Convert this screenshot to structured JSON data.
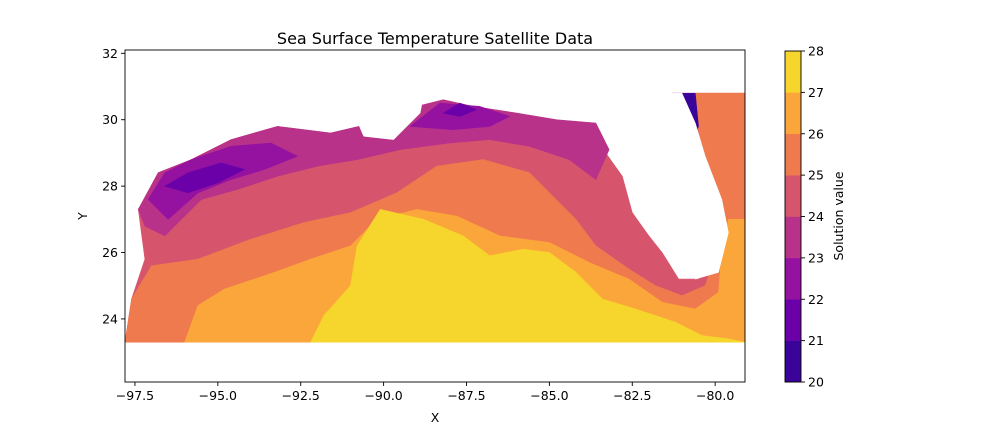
{
  "chart_data": {
    "type": "heatmap",
    "subtype": "filled-contour",
    "title": "Sea Surface Temperature Satellite Data",
    "xlabel": "X",
    "ylabel": "Y",
    "xlim": [
      -97.8,
      -79.1
    ],
    "ylim": [
      22.1,
      32.1
    ],
    "x_ticks": [
      -97.5,
      -95.0,
      -92.5,
      -90.0,
      -87.5,
      -85.0,
      -82.5,
      -80.0
    ],
    "x_tick_labels": [
      "−97.5",
      "−95.0",
      "−92.5",
      "−90.0",
      "−87.5",
      "−85.0",
      "−82.5",
      "−80.0"
    ],
    "y_ticks": [
      24,
      26,
      28,
      30,
      32
    ],
    "y_tick_labels": [
      "24",
      "26",
      "28",
      "30",
      "32"
    ],
    "colorbar": {
      "label": "Solution value",
      "levels": [
        20,
        21,
        22,
        23,
        24,
        25,
        26,
        27,
        28
      ],
      "tick_labels": [
        "20",
        "21",
        "22",
        "23",
        "24",
        "25",
        "26",
        "27",
        "28"
      ],
      "colormap": "plasma",
      "colors": [
        "#3a049a",
        "#6b00a8",
        "#9512a1",
        "#b83289",
        "#d6556d",
        "#ee7a4e",
        "#fba63a",
        "#f6d52c"
      ]
    },
    "regions_by_band": [
      {
        "band": [
          24,
          25
        ],
        "polygon": [
          [
            -97.8,
            23.3
          ],
          [
            -97.6,
            24.6
          ],
          [
            -97.2,
            25.8
          ],
          [
            -97.4,
            27.3
          ],
          [
            -96.8,
            28.4
          ],
          [
            -95.8,
            28.8
          ],
          [
            -94.6,
            29.4
          ],
          [
            -93.2,
            29.8
          ],
          [
            -91.6,
            29.6
          ],
          [
            -90.3,
            29.9
          ],
          [
            -89.4,
            30.3
          ],
          [
            -88.2,
            30.6
          ],
          [
            -87.3,
            30.4
          ],
          [
            -86.0,
            30.2
          ],
          [
            -84.8,
            30.0
          ],
          [
            -83.8,
            29.7
          ],
          [
            -83.3,
            29.0
          ],
          [
            -82.8,
            28.3
          ],
          [
            -82.5,
            27.2
          ],
          [
            -82.0,
            26.5
          ],
          [
            -81.6,
            26.0
          ],
          [
            -81.1,
            25.2
          ],
          [
            -80.5,
            25.2
          ],
          [
            -80.1,
            26.0
          ],
          [
            -79.9,
            27.4
          ],
          [
            -80.2,
            28.6
          ],
          [
            -80.5,
            29.6
          ],
          [
            -80.9,
            30.2
          ],
          [
            -81.3,
            30.8
          ],
          [
            -79.1,
            30.8
          ],
          [
            -79.1,
            23.3
          ]
        ]
      },
      {
        "band": [
          23,
          24
        ],
        "polygon": [
          [
            -97.4,
            27.3
          ],
          [
            -96.8,
            28.4
          ],
          [
            -95.8,
            28.8
          ],
          [
            -94.6,
            29.4
          ],
          [
            -93.2,
            29.8
          ],
          [
            -91.6,
            29.6
          ],
          [
            -90.3,
            29.9
          ],
          [
            -89.4,
            30.3
          ],
          [
            -88.2,
            30.6
          ],
          [
            -87.3,
            30.4
          ],
          [
            -86.0,
            30.2
          ],
          [
            -84.8,
            30.0
          ],
          [
            -83.6,
            29.9
          ],
          [
            -83.2,
            29.1
          ],
          [
            -83.6,
            28.2
          ],
          [
            -84.4,
            28.8
          ],
          [
            -85.6,
            29.2
          ],
          [
            -86.8,
            29.4
          ],
          [
            -88.0,
            29.3
          ],
          [
            -89.5,
            29.1
          ],
          [
            -90.8,
            28.8
          ],
          [
            -92.0,
            28.6
          ],
          [
            -93.2,
            28.3
          ],
          [
            -94.4,
            27.9
          ],
          [
            -95.5,
            27.6
          ],
          [
            -96.6,
            26.5
          ],
          [
            -97.2,
            26.8
          ]
        ]
      },
      {
        "band": [
          22,
          23
        ],
        "polygon": [
          [
            -97.1,
            27.6
          ],
          [
            -96.6,
            28.4
          ],
          [
            -95.8,
            28.8
          ],
          [
            -94.6,
            29.2
          ],
          [
            -93.4,
            29.3
          ],
          [
            -92.6,
            28.9
          ],
          [
            -93.6,
            28.5
          ],
          [
            -94.6,
            28.2
          ],
          [
            -95.6,
            27.8
          ],
          [
            -96.5,
            27.0
          ]
        ]
      },
      {
        "band": [
          21,
          22
        ],
        "polygon": [
          [
            -96.6,
            28.0
          ],
          [
            -95.9,
            28.4
          ],
          [
            -94.9,
            28.7
          ],
          [
            -94.2,
            28.5
          ],
          [
            -95.0,
            28.1
          ],
          [
            -95.9,
            27.8
          ]
        ]
      },
      {
        "band": [
          22,
          23
        ],
        "polygon": [
          [
            -89.2,
            29.8
          ],
          [
            -88.3,
            30.5
          ],
          [
            -87.1,
            30.4
          ],
          [
            -86.2,
            30.1
          ],
          [
            -86.8,
            29.8
          ],
          [
            -87.9,
            29.7
          ]
        ]
      },
      {
        "band": [
          21,
          22
        ],
        "polygon": [
          [
            -88.2,
            30.2
          ],
          [
            -87.7,
            30.5
          ],
          [
            -87.2,
            30.3
          ],
          [
            -87.7,
            30.1
          ]
        ]
      },
      {
        "band": [
          25,
          26
        ],
        "polygon": [
          [
            -97.8,
            23.3
          ],
          [
            -97.6,
            24.6
          ],
          [
            -97.0,
            25.6
          ],
          [
            -95.6,
            25.8
          ],
          [
            -94.0,
            26.4
          ],
          [
            -92.4,
            26.9
          ],
          [
            -91.0,
            27.2
          ],
          [
            -89.6,
            27.8
          ],
          [
            -88.4,
            28.6
          ],
          [
            -87.0,
            28.8
          ],
          [
            -85.6,
            28.4
          ],
          [
            -84.8,
            27.6
          ],
          [
            -84.2,
            27.0
          ],
          [
            -83.6,
            26.2
          ],
          [
            -82.6,
            25.5
          ],
          [
            -81.8,
            25.0
          ],
          [
            -81.0,
            24.7
          ],
          [
            -80.3,
            25.0
          ],
          [
            -79.9,
            26.2
          ],
          [
            -80.2,
            27.4
          ],
          [
            -80.3,
            28.7
          ],
          [
            -80.5,
            29.7
          ],
          [
            -80.6,
            30.8
          ],
          [
            -79.1,
            30.8
          ],
          [
            -79.1,
            23.3
          ]
        ]
      },
      {
        "band": [
          26,
          27
        ],
        "polygon": [
          [
            -96.0,
            23.3
          ],
          [
            -95.6,
            24.4
          ],
          [
            -94.8,
            24.9
          ],
          [
            -93.3,
            25.4
          ],
          [
            -92.2,
            25.8
          ],
          [
            -91.0,
            26.2
          ],
          [
            -90.2,
            27.0
          ],
          [
            -89.0,
            27.3
          ],
          [
            -87.8,
            27.1
          ],
          [
            -86.5,
            26.5
          ],
          [
            -85.0,
            26.3
          ],
          [
            -83.8,
            25.7
          ],
          [
            -82.6,
            25.2
          ],
          [
            -81.6,
            24.5
          ],
          [
            -80.6,
            24.3
          ],
          [
            -79.9,
            24.8
          ],
          [
            -79.8,
            26.0
          ],
          [
            -79.6,
            27.0
          ],
          [
            -79.1,
            27.0
          ],
          [
            -79.1,
            23.3
          ]
        ]
      },
      {
        "band": [
          27,
          28
        ],
        "polygon": [
          [
            -92.2,
            23.3
          ],
          [
            -91.8,
            24.1
          ],
          [
            -91.0,
            25.0
          ],
          [
            -90.8,
            26.2
          ],
          [
            -90.1,
            27.3
          ],
          [
            -88.8,
            27.0
          ],
          [
            -87.6,
            26.5
          ],
          [
            -86.8,
            25.9
          ],
          [
            -85.8,
            26.1
          ],
          [
            -85.0,
            26.0
          ],
          [
            -84.2,
            25.4
          ],
          [
            -83.4,
            24.6
          ],
          [
            -82.4,
            24.3
          ],
          [
            -81.2,
            23.9
          ],
          [
            -80.4,
            23.5
          ],
          [
            -79.6,
            23.4
          ],
          [
            -79.1,
            23.3
          ]
        ]
      }
    ],
    "cutouts": [
      {
        "name": "florida-peninsula",
        "polygon": [
          [
            -82.9,
            30.8
          ],
          [
            -82.0,
            29.2
          ],
          [
            -81.6,
            28.4
          ],
          [
            -81.3,
            27.2
          ],
          [
            -81.0,
            26.2
          ],
          [
            -80.6,
            25.2
          ],
          [
            -79.9,
            25.4
          ],
          [
            -79.6,
            26.6
          ],
          [
            -79.8,
            27.6
          ],
          [
            -80.3,
            28.9
          ],
          [
            -80.6,
            29.9
          ],
          [
            -81.0,
            30.8
          ]
        ]
      },
      {
        "name": "mississippi-delta-inlet",
        "polygon": [
          [
            -90.9,
            30.2
          ],
          [
            -90.6,
            29.5
          ],
          [
            -89.7,
            29.4
          ],
          [
            -88.9,
            30.2
          ],
          [
            -88.8,
            30.7
          ],
          [
            -89.9,
            30.5
          ]
        ]
      }
    ],
    "notes_on_bands": [
      {
        "band": [
          20,
          21
        ],
        "where": "dark sliver on Atlantic side near -81.0,30.0"
      }
    ]
  }
}
